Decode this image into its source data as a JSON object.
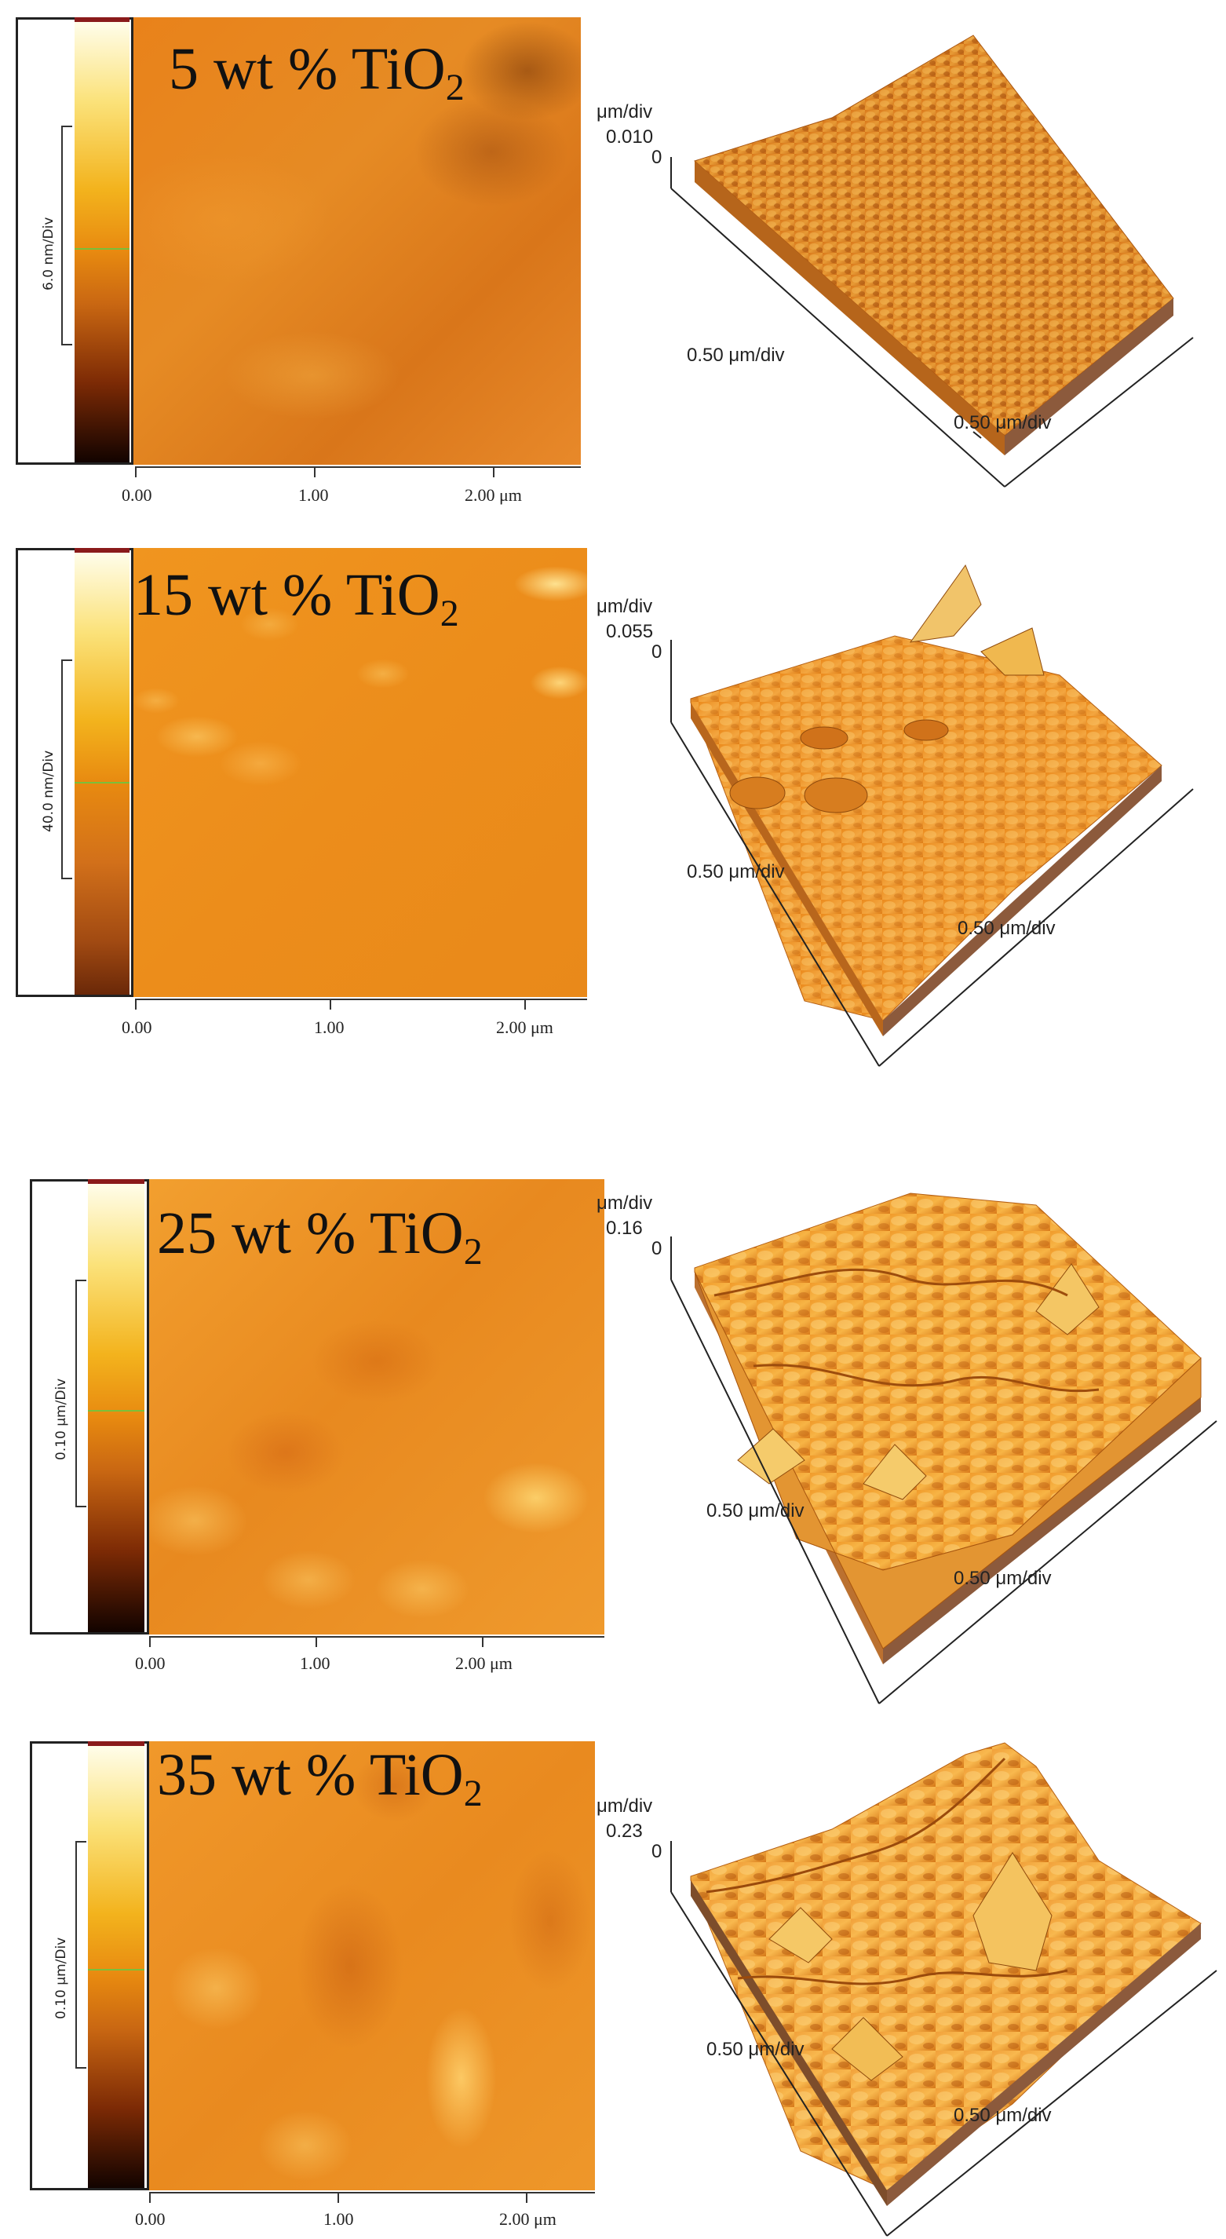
{
  "panels": [
    {
      "title_main": "5 wt % TiO",
      "title_sub": "2",
      "colorbar_label": "6.0 nm/Div",
      "x_ticks": [
        "0.00",
        "1.00",
        "2.00 μm"
      ],
      "z_unit_label": "μm/div",
      "z_max_label": "0.010",
      "z_zero_label": "0",
      "y_div_label": "0.50  μm/div",
      "x_div_label": "0.50  μm/div"
    },
    {
      "title_main": "15 wt % TiO",
      "title_sub": "2",
      "colorbar_label": "40.0 nm/Div",
      "x_ticks": [
        "0.00",
        "1.00",
        "2.00 μm"
      ],
      "z_unit_label": "μm/div",
      "z_max_label": "0.055",
      "z_zero_label": "0",
      "y_div_label": "0.50  μm/div",
      "x_div_label": "0.50  μm/div"
    },
    {
      "title_main": "25 wt % TiO",
      "title_sub": "2",
      "colorbar_label": "0.10 μm/Div",
      "x_ticks": [
        "0.00",
        "1.00",
        "2.00 μm"
      ],
      "z_unit_label": "μm/div",
      "z_max_label": "0.16",
      "z_zero_label": "0",
      "y_div_label": "0.50  μm/div",
      "x_div_label": "0.50  μm/div"
    },
    {
      "title_main": "35 wt % TiO",
      "title_sub": "2",
      "colorbar_label": "0.10 μm/Div",
      "x_ticks": [
        "0.00",
        "1.00",
        "2.00 μm"
      ],
      "z_unit_label": "μm/div",
      "z_max_label": "0.23",
      "z_zero_label": "0",
      "y_div_label": "0.50  μm/div",
      "x_div_label": "0.50  μm/div"
    }
  ],
  "colors": {
    "surface_base": "#e8861a",
    "surface_light": "#f6b649",
    "surface_dark": "#b4560d",
    "colorbar_top": "#fffbe6",
    "colorbar_bottom": "#1a0500"
  }
}
